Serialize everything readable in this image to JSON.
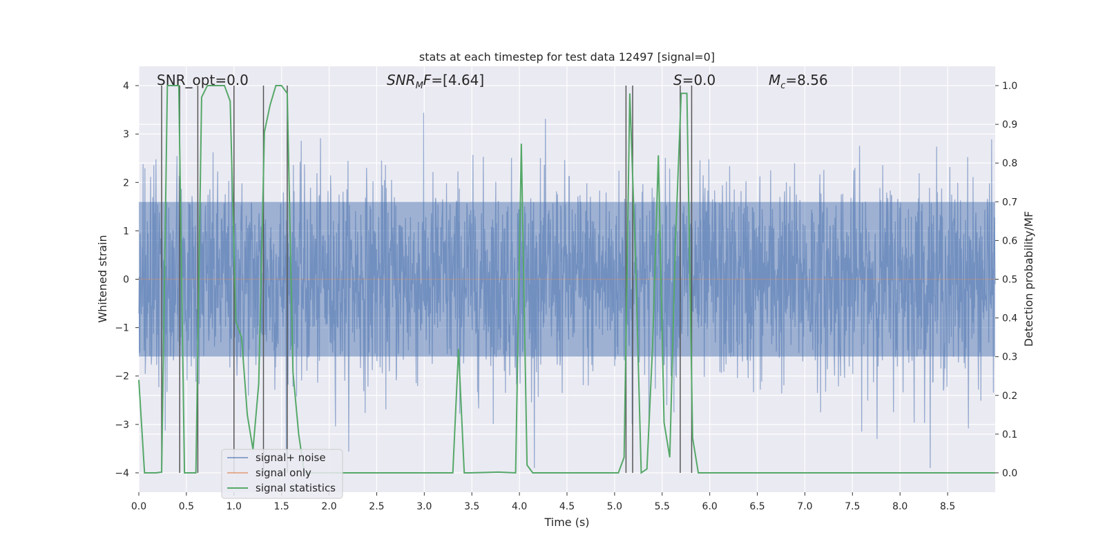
{
  "chart_data": {
    "type": "line",
    "title": "stats at each timestep for test data 12497 [signal=0]",
    "xlabel": "Time (s)",
    "ylabel": "Whitened strain",
    "y2label": "Detection probability/MF",
    "xlim": [
      0.0,
      9.0
    ],
    "ylim": [
      -4.4,
      4.4
    ],
    "y2lim": [
      -0.05,
      1.05
    ],
    "xticks": [
      0.0,
      0.5,
      1.0,
      1.5,
      2.0,
      2.5,
      3.0,
      3.5,
      4.0,
      4.5,
      5.0,
      5.5,
      6.0,
      6.5,
      7.0,
      7.5,
      8.0,
      8.5
    ],
    "xtick_labels": [
      "0.0",
      "0.5",
      "1.0",
      "1.5",
      "2.0",
      "2.5",
      "3.0",
      "3.5",
      "4.0",
      "4.5",
      "5.0",
      "5.5",
      "6.0",
      "6.5",
      "7.0",
      "7.5",
      "8.0",
      "8.5"
    ],
    "yticks": [
      4,
      3,
      2,
      1,
      0,
      -1,
      -2,
      -3,
      -4
    ],
    "ytick_labels": [
      "4",
      "3",
      "2",
      "1",
      "0",
      "−1",
      "−2",
      "−3",
      "−4"
    ],
    "y2ticks": [
      1.0,
      0.9,
      0.8,
      0.7,
      0.6,
      0.5,
      0.4,
      0.3,
      0.2,
      0.1,
      0.0
    ],
    "y2tick_labels": [
      "1.0",
      "0.9",
      "0.8",
      "0.7",
      "0.6",
      "0.5",
      "0.4",
      "0.3",
      "0.2",
      "0.1",
      "0.0"
    ],
    "annotations": [
      {
        "label": "SNR_opt=0.0",
        "x": 0.2,
        "y": 4.1
      },
      {
        "label": "SNR_MF=[4.64]",
        "x": 2.6,
        "y": 4.1
      },
      {
        "label": "S=0.0",
        "x": 5.6,
        "y": 4.1
      },
      {
        "label": "M_c=8.56",
        "x": 6.6,
        "y": 4.1
      }
    ],
    "legend": {
      "location": "lower-left",
      "entries": [
        "signal+ noise",
        "signal only",
        "signal statistics"
      ]
    },
    "series": [
      {
        "name": "signal+ noise",
        "color": "#4c72b0",
        "opacity": 0.5,
        "envelope_upper": 1.6,
        "envelope_lower": -1.6,
        "peak_range": [
          -3.9,
          3.9
        ],
        "note": "dense whitened noise trace spanning 0.0–9.0 s"
      },
      {
        "name": "signal only",
        "color": "#dd8452",
        "x": [
          0.0,
          9.0
        ],
        "y": [
          0.0,
          0.0
        ]
      },
      {
        "name": "signal statistics",
        "color": "#55a868",
        "axis": "right",
        "x": [
          0.0,
          0.06,
          0.18,
          0.24,
          0.3,
          0.42,
          0.48,
          0.54,
          0.6,
          0.66,
          0.72,
          0.78,
          0.84,
          0.9,
          0.96,
          1.02,
          1.08,
          1.14,
          1.2,
          1.26,
          1.32,
          1.38,
          1.44,
          1.5,
          1.56,
          1.62,
          1.68,
          1.74,
          3.3,
          3.36,
          3.42,
          3.48,
          3.78,
          3.96,
          4.02,
          4.08,
          4.14,
          4.2,
          5.04,
          5.1,
          5.16,
          5.22,
          5.28,
          5.34,
          5.4,
          5.46,
          5.52,
          5.58,
          5.64,
          5.7,
          5.76,
          5.82,
          5.88,
          5.94,
          6.0,
          9.0
        ],
        "y": [
          0.24,
          0.0,
          0.0,
          0.002,
          1.0,
          1.0,
          0.0,
          0.0,
          0.0,
          0.97,
          1.0,
          1.0,
          1.0,
          1.0,
          0.96,
          0.39,
          0.35,
          0.15,
          0.06,
          0.23,
          0.88,
          0.95,
          1.0,
          1.0,
          0.98,
          0.26,
          0.1,
          0.0,
          0.0,
          0.32,
          0.0,
          0.0,
          0.002,
          0.0,
          0.85,
          0.02,
          0.0,
          0.0,
          0.0,
          0.04,
          0.98,
          0.55,
          0.0,
          0.01,
          0.33,
          0.82,
          0.13,
          0.04,
          0.6,
          0.98,
          0.98,
          0.09,
          0.0,
          0.0,
          0.0,
          0.0
        ]
      }
    ],
    "vlines": [
      0.24,
      0.43,
      0.62,
      1.0,
      1.31,
      1.56,
      5.12,
      5.19,
      5.69,
      5.81
    ],
    "vline_range": [
      -4.0,
      4.0
    ],
    "vline_color": "#555555"
  }
}
